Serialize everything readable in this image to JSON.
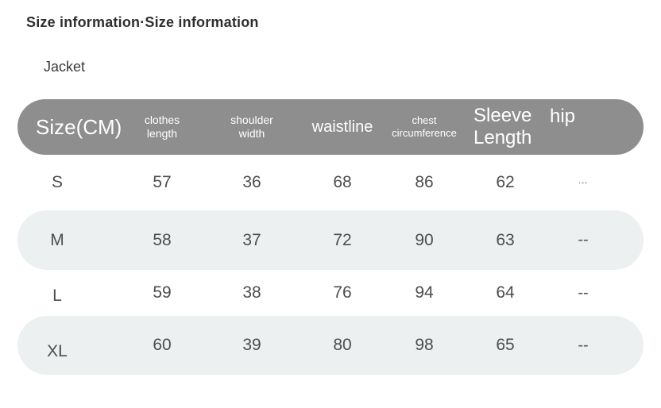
{
  "page": {
    "title": "Size information·Size information",
    "category": "Jacket"
  },
  "table": {
    "unit": "CM",
    "columns": [
      {
        "id": "size",
        "label": "Size(CM)"
      },
      {
        "id": "clothes_length",
        "label": "clothes\nlength"
      },
      {
        "id": "shoulder_width",
        "label": "shoulder\nwidth"
      },
      {
        "id": "waistline",
        "label": "waistline"
      },
      {
        "id": "chest_circumference",
        "label": "chest\ncircumference"
      },
      {
        "id": "sleeve_length",
        "label": "Sleeve\nLength"
      },
      {
        "id": "hip",
        "label": "hip"
      }
    ],
    "rows": [
      {
        "size": "S",
        "clothes_length": "57",
        "shoulder_width": "36",
        "waistline": "68",
        "chest_circumference": "86",
        "sleeve_length": "62",
        "hip": "·--"
      },
      {
        "size": "M",
        "clothes_length": "58",
        "shoulder_width": "37",
        "waistline": "72",
        "chest_circumference": "90",
        "sleeve_length": "63",
        "hip": "--"
      },
      {
        "size": "L",
        "clothes_length": "59",
        "shoulder_width": "38",
        "waistline": "76",
        "chest_circumference": "94",
        "sleeve_length": "64",
        "hip": "--"
      },
      {
        "size": "XL",
        "clothes_length": "60",
        "shoulder_width": "39",
        "waistline": "80",
        "chest_circumference": "98",
        "sleeve_length": "65",
        "hip": "--"
      }
    ]
  },
  "colors": {
    "header_bg": "#8e8e8e",
    "row_alt_bg": "#edf0f0",
    "header_text": "#ffffff",
    "body_text": "#4d4d4d",
    "title_text": "#2e2e2e"
  }
}
